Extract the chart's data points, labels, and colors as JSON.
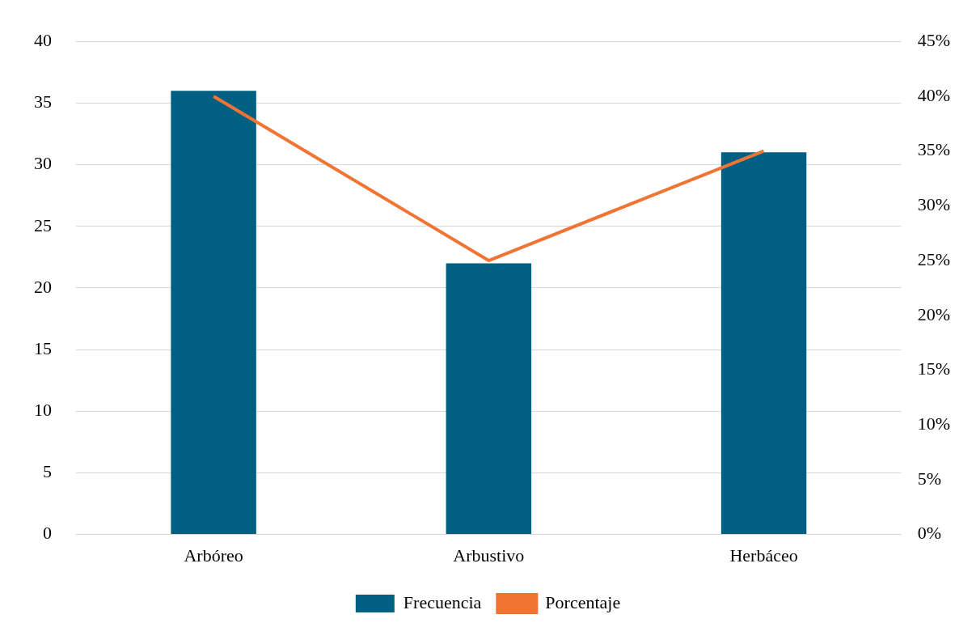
{
  "chart_data": {
    "type": "bar",
    "categories": [
      "Arbóreo",
      "Arbustivo",
      "Herbáceo"
    ],
    "series": [
      {
        "name": "Frecuencia",
        "color": "#005f83",
        "values": [
          36,
          22,
          31
        ]
      },
      {
        "name": "Porcentaje",
        "type": "line",
        "axis": "y2",
        "color": "#f07534",
        "values": [
          40,
          25,
          35
        ]
      }
    ],
    "ylim": [
      0,
      40
    ],
    "yticks": [
      0,
      5,
      10,
      15,
      20,
      25,
      30,
      35,
      40
    ],
    "y2lim": [
      0,
      45
    ],
    "y2ticks": [
      {
        "value": 0,
        "label": "0%"
      },
      {
        "value": 5,
        "label": "5%"
      },
      {
        "value": 10,
        "label": "10%"
      },
      {
        "value": 15,
        "label": "15%"
      },
      {
        "value": 20,
        "label": "20%"
      },
      {
        "value": 25,
        "label": "25%"
      },
      {
        "value": 30,
        "label": "30%"
      },
      {
        "value": 35,
        "label": "35%"
      },
      {
        "value": 40,
        "label": "40%"
      },
      {
        "value": 45,
        "label": "45%"
      }
    ],
    "grid": "y",
    "legend": "bottom",
    "marker": "none",
    "line_style": "solid"
  }
}
